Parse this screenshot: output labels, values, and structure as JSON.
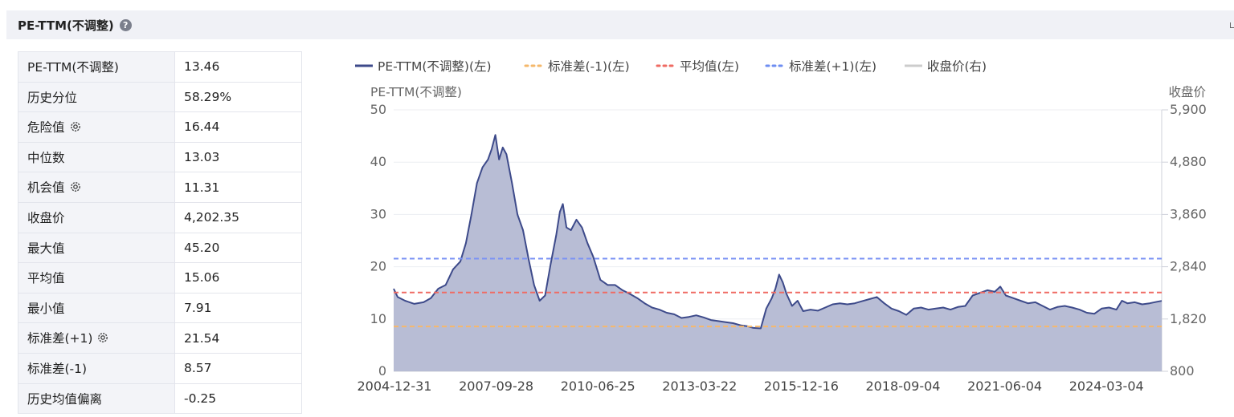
{
  "header": {
    "title": "PE-TTM(不调整)",
    "help_icon": "?"
  },
  "stats": [
    {
      "label": "PE-TTM(不调整)",
      "value": "13.46",
      "gear": false
    },
    {
      "label": "历史分位",
      "value": "58.29%",
      "gear": false
    },
    {
      "label": "危险值",
      "value": "16.44",
      "gear": true
    },
    {
      "label": "中位数",
      "value": "13.03",
      "gear": false
    },
    {
      "label": "机会值",
      "value": "11.31",
      "gear": true
    },
    {
      "label": "收盘价",
      "value": "4,202.35",
      "gear": false
    },
    {
      "label": "最大值",
      "value": "45.20",
      "gear": false
    },
    {
      "label": "平均值",
      "value": "15.06",
      "gear": false
    },
    {
      "label": "最小值",
      "value": "7.91",
      "gear": false
    },
    {
      "label": "标准差(+1)",
      "value": "21.54",
      "gear": true
    },
    {
      "label": "标准差(-1)",
      "value": "8.57",
      "gear": false
    },
    {
      "label": "历史均值偏离",
      "value": "-0.25",
      "gear": false
    }
  ],
  "chart_data": {
    "type": "area",
    "y_axis_left": {
      "title": "PE-TTM(不调整)",
      "ticks": [
        "0",
        "10",
        "20",
        "30",
        "40",
        "50"
      ],
      "range": [
        0,
        50
      ]
    },
    "y_axis_right": {
      "title": "收盘价",
      "ticks": [
        "800",
        "1,820",
        "2,840",
        "3,860",
        "4,880",
        "5,900"
      ],
      "range": [
        800,
        5900
      ]
    },
    "x_ticks": [
      "2004-12-31",
      "2007-09-28",
      "2010-06-25",
      "2013-03-22",
      "2015-12-16",
      "2018-09-04",
      "2021-06-04",
      "2024-03-04"
    ],
    "x_range": [
      2004.99,
      2025.83
    ],
    "grid": true,
    "legend_position": "top",
    "legend": [
      {
        "label": "PE-TTM(不调整)(左)",
        "style": "solid",
        "color": "#3d4a8a",
        "active": true
      },
      {
        "label": "标准差(-1)(左)",
        "style": "dotted",
        "color": "#f5b86b",
        "active": true
      },
      {
        "label": "平均值(左)",
        "style": "dotted",
        "color": "#ef6b63",
        "active": true
      },
      {
        "label": "标准差(+1)(左)",
        "style": "dotted",
        "color": "#6e8ef2",
        "active": true
      },
      {
        "label": "收盘价(右)",
        "style": "solid",
        "color": "#cccccc",
        "active": false
      }
    ],
    "reference_lines": [
      {
        "name": "标准差(+1)",
        "value": 21.54,
        "color": "#7b93f4"
      },
      {
        "name": "平均值",
        "value": 15.06,
        "color": "#ef6b63"
      },
      {
        "name": "标准差(-1)",
        "value": 8.57,
        "color": "#f5b86b"
      }
    ],
    "series": [
      {
        "name": "PE-TTM(不调整)",
        "color": "#3d4a8a",
        "fill": "#b4b9d3",
        "points": [
          [
            2004.99,
            15.8
          ],
          [
            2005.1,
            14.2
          ],
          [
            2005.3,
            13.5
          ],
          [
            2005.55,
            12.9
          ],
          [
            2005.8,
            13.2
          ],
          [
            2006.0,
            14.0
          ],
          [
            2006.2,
            15.8
          ],
          [
            2006.4,
            16.5
          ],
          [
            2006.6,
            19.5
          ],
          [
            2006.8,
            21.0
          ],
          [
            2006.95,
            24.5
          ],
          [
            2007.1,
            30.0
          ],
          [
            2007.25,
            36.0
          ],
          [
            2007.4,
            39.0
          ],
          [
            2007.55,
            40.5
          ],
          [
            2007.65,
            42.5
          ],
          [
            2007.75,
            45.2
          ],
          [
            2007.85,
            40.5
          ],
          [
            2007.95,
            42.8
          ],
          [
            2008.05,
            41.5
          ],
          [
            2008.2,
            36.0
          ],
          [
            2008.35,
            30.0
          ],
          [
            2008.5,
            27.0
          ],
          [
            2008.65,
            21.5
          ],
          [
            2008.8,
            16.5
          ],
          [
            2008.95,
            13.5
          ],
          [
            2009.1,
            14.5
          ],
          [
            2009.25,
            20.5
          ],
          [
            2009.4,
            26.0
          ],
          [
            2009.5,
            30.5
          ],
          [
            2009.58,
            32.0
          ],
          [
            2009.68,
            27.5
          ],
          [
            2009.8,
            27.0
          ],
          [
            2009.95,
            29.0
          ],
          [
            2010.1,
            27.5
          ],
          [
            2010.25,
            24.5
          ],
          [
            2010.4,
            22.0
          ],
          [
            2010.6,
            17.5
          ],
          [
            2010.8,
            16.5
          ],
          [
            2011.0,
            16.5
          ],
          [
            2011.2,
            15.5
          ],
          [
            2011.4,
            14.8
          ],
          [
            2011.6,
            14.0
          ],
          [
            2011.8,
            13.0
          ],
          [
            2012.0,
            12.2
          ],
          [
            2012.2,
            11.8
          ],
          [
            2012.4,
            11.2
          ],
          [
            2012.6,
            10.9
          ],
          [
            2012.8,
            10.2
          ],
          [
            2013.0,
            10.4
          ],
          [
            2013.2,
            10.7
          ],
          [
            2013.4,
            10.3
          ],
          [
            2013.6,
            9.8
          ],
          [
            2013.8,
            9.6
          ],
          [
            2014.0,
            9.4
          ],
          [
            2014.2,
            9.2
          ],
          [
            2014.4,
            8.8
          ],
          [
            2014.6,
            8.6
          ],
          [
            2014.75,
            8.3
          ],
          [
            2014.95,
            8.2
          ],
          [
            2015.1,
            12.0
          ],
          [
            2015.25,
            14.0
          ],
          [
            2015.35,
            15.8
          ],
          [
            2015.45,
            18.5
          ],
          [
            2015.55,
            17.0
          ],
          [
            2015.65,
            14.8
          ],
          [
            2015.8,
            12.5
          ],
          [
            2015.95,
            13.5
          ],
          [
            2016.1,
            11.5
          ],
          [
            2016.3,
            11.8
          ],
          [
            2016.5,
            11.6
          ],
          [
            2016.7,
            12.2
          ],
          [
            2016.9,
            12.8
          ],
          [
            2017.1,
            13.0
          ],
          [
            2017.3,
            12.8
          ],
          [
            2017.5,
            13.0
          ],
          [
            2017.7,
            13.4
          ],
          [
            2017.9,
            13.8
          ],
          [
            2018.1,
            14.2
          ],
          [
            2018.3,
            13.0
          ],
          [
            2018.5,
            12.0
          ],
          [
            2018.7,
            11.5
          ],
          [
            2018.9,
            10.8
          ],
          [
            2019.1,
            12.0
          ],
          [
            2019.3,
            12.2
          ],
          [
            2019.5,
            11.8
          ],
          [
            2019.7,
            12.0
          ],
          [
            2019.9,
            12.2
          ],
          [
            2020.1,
            11.8
          ],
          [
            2020.3,
            12.3
          ],
          [
            2020.5,
            12.5
          ],
          [
            2020.7,
            14.5
          ],
          [
            2020.9,
            15.0
          ],
          [
            2021.1,
            15.5
          ],
          [
            2021.3,
            15.2
          ],
          [
            2021.45,
            16.2
          ],
          [
            2021.6,
            14.5
          ],
          [
            2021.8,
            14.0
          ],
          [
            2022.0,
            13.5
          ],
          [
            2022.2,
            13.0
          ],
          [
            2022.4,
            13.2
          ],
          [
            2022.6,
            12.5
          ],
          [
            2022.8,
            11.8
          ],
          [
            2023.0,
            12.3
          ],
          [
            2023.2,
            12.5
          ],
          [
            2023.4,
            12.2
          ],
          [
            2023.6,
            11.8
          ],
          [
            2023.8,
            11.2
          ],
          [
            2024.0,
            11.0
          ],
          [
            2024.2,
            12.0
          ],
          [
            2024.4,
            12.2
          ],
          [
            2024.6,
            11.8
          ],
          [
            2024.75,
            13.5
          ],
          [
            2024.9,
            13.0
          ],
          [
            2025.1,
            13.2
          ],
          [
            2025.3,
            12.8
          ],
          [
            2025.5,
            13.0
          ],
          [
            2025.7,
            13.3
          ],
          [
            2025.83,
            13.46
          ]
        ]
      }
    ]
  }
}
